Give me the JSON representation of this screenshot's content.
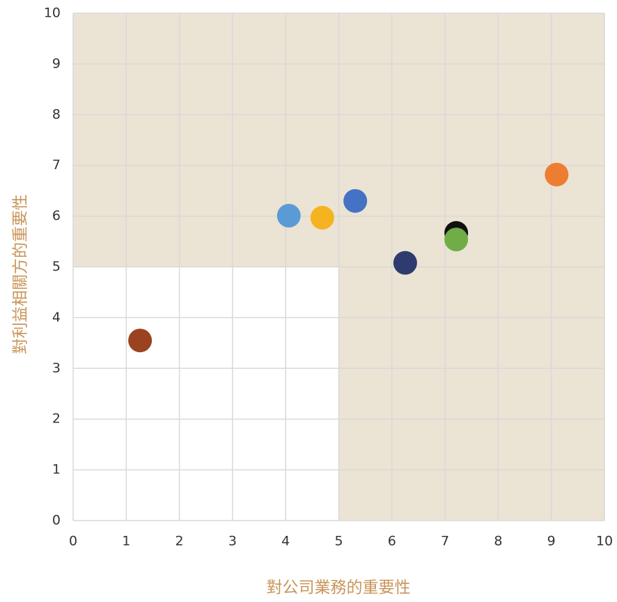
{
  "chart_data": {
    "type": "scatter",
    "x": [
      1.26,
      4.06,
      4.69,
      5.31,
      6.25,
      7.21,
      7.21,
      9.1
    ],
    "values": [
      3.55,
      6.01,
      5.97,
      6.3,
      5.08,
      5.67,
      5.54,
      6.82
    ],
    "colors": [
      "#9b4220",
      "#5b9bd5",
      "#f5b320",
      "#4472c4",
      "#2f3b6e",
      "#111111",
      "#70ad47",
      "#ed7d31"
    ],
    "xlim": [
      0,
      10
    ],
    "ylim": [
      0,
      10
    ],
    "xticks": [
      0,
      1,
      2,
      3,
      4,
      5,
      6,
      7,
      8,
      9,
      10
    ],
    "yticks": [
      0,
      1,
      2,
      3,
      4,
      5,
      6,
      7,
      8,
      9,
      10
    ],
    "grid": true,
    "x_label": "對公司業務的重要性",
    "y_label": "對利益相關方的重要性"
  }
}
